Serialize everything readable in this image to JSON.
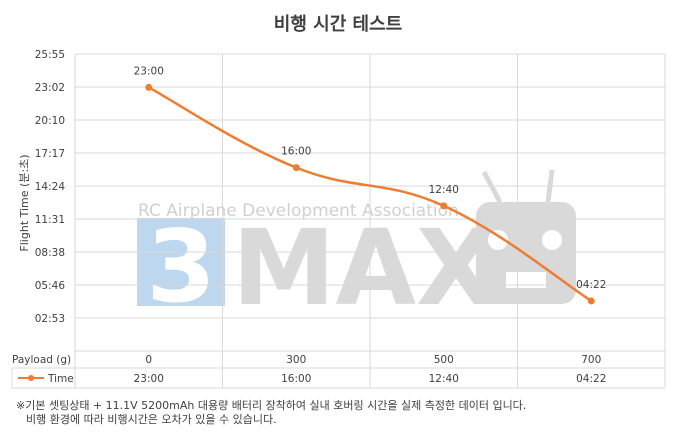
{
  "chart_data": {
    "type": "line",
    "title": "비행 시간 테스트",
    "xlabel": "Payload (g)",
    "ylabel": "Flight Time (분:초)",
    "y_tick_labels": [
      "02:53",
      "05:46",
      "08:38",
      "11:31",
      "14:24",
      "17:17",
      "20:10",
      "23:02",
      "25:55"
    ],
    "ylim_seconds": [
      0,
      1555
    ],
    "categories": [
      "0",
      "300",
      "500",
      "700"
    ],
    "series": [
      {
        "name": "Time",
        "color": "#ED7D31",
        "values_seconds": [
          1380,
          960,
          760,
          262
        ],
        "labels": [
          "23:00",
          "16:00",
          "12:40",
          "04:22"
        ]
      }
    ],
    "grid": true,
    "legend": "data-table"
  },
  "watermark": {
    "text": "RC Airplane Development Association",
    "logo_text": "3MAX",
    "logo_digit": "3",
    "logo_letters": "MAX"
  },
  "footnote": {
    "line1": "※기본 셋팅상태 + 11.1V 5200mAh 대용량 배터리 장착하여 실내 호버링 시간을 실제 측정한 데이터 입니다.",
    "line2": "비행 환경에 따라 비행시간은 오차가 있을 수 있습니다."
  },
  "colors": {
    "line": "#ED7D31",
    "grid": "#D9D9D9",
    "logo_blue": "#BDD7EE"
  }
}
